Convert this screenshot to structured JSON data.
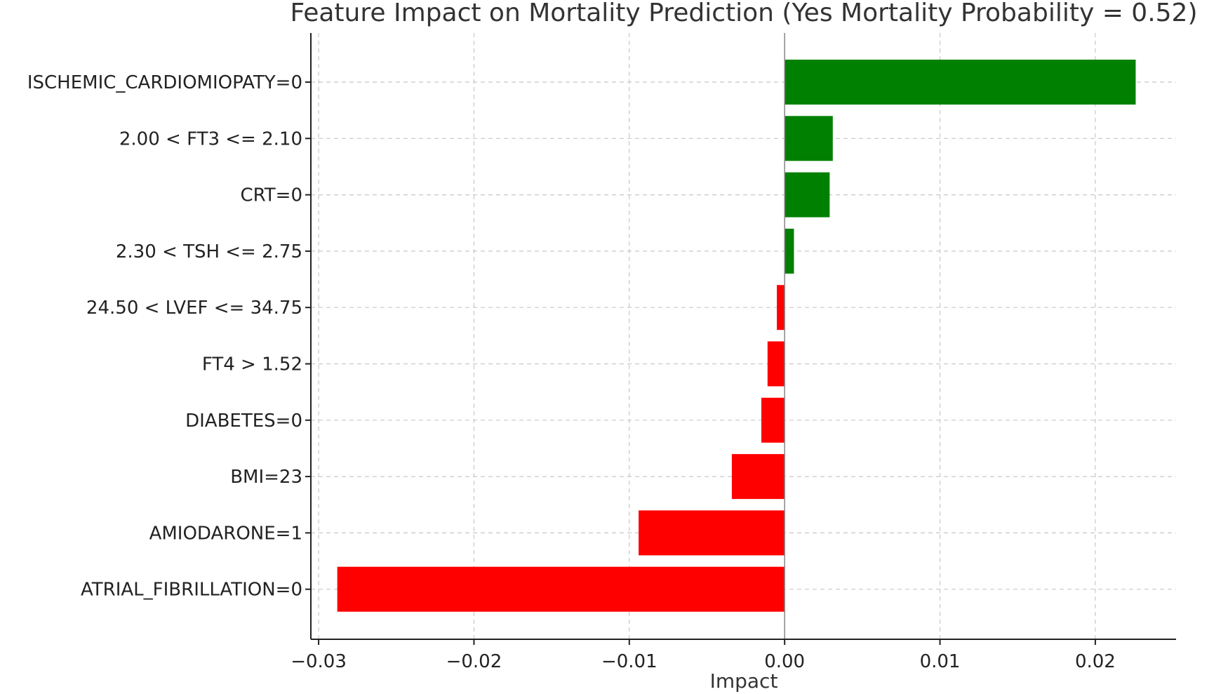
{
  "chart_data": {
    "type": "bar",
    "orientation": "horizontal",
    "title": "Feature Impact on Mortality Prediction (Yes Mortality Probability = 0.52)",
    "xlabel": "Impact",
    "ylabel": "",
    "xlim": [
      -0.0305,
      0.0252
    ],
    "xticks": [
      -0.03,
      -0.02,
      -0.01,
      0.0,
      0.01,
      0.02
    ],
    "xtick_labels": [
      "−0.03",
      "−0.02",
      "−0.01",
      "0.00",
      "0.01",
      "0.02"
    ],
    "grid": true,
    "categories": [
      "ISCHEMIC_CARDIOMIOPATY=0",
      "2.00 < FT3 <= 2.10",
      "CRT=0",
      "2.30 < TSH <= 2.75",
      "24.50 < LVEF <= 34.75",
      "FT4 > 1.52",
      "DIABETES=0",
      "BMI=23",
      "AMIODARONE=1",
      "ATRIAL_FIBRILLATION=0"
    ],
    "values": [
      0.0226,
      0.0031,
      0.0029,
      0.0006,
      -0.0005,
      -0.0011,
      -0.0015,
      -0.0034,
      -0.0094,
      -0.0288
    ],
    "colors": {
      "positive": "#008000",
      "negative": "#ff0000"
    }
  }
}
